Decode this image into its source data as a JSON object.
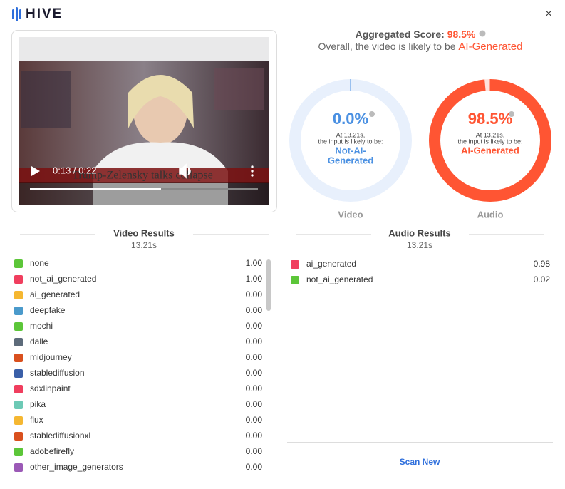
{
  "header": {
    "logo": "HIVE",
    "close": "×"
  },
  "video": {
    "time": "0:13 / 0:22",
    "caption": "Trump-Zelensky talks collapse"
  },
  "summary": {
    "label": "Aggregated Score:",
    "score": "98.5%",
    "sentence": "Overall, the video is likely to be",
    "verdict": "AI-Generated"
  },
  "gauges": [
    {
      "name": "Video",
      "value": 0,
      "label": "0.0%",
      "at": "At 13.21s,",
      "likely": "the input is likely to be:",
      "verdict_lines": [
        "Not-AI-",
        "Generated"
      ],
      "color": "#4a90e2",
      "track": "#e8f0fc"
    },
    {
      "name": "Audio",
      "value": 98.5,
      "label": "98.5%",
      "at": "At 13.21s,",
      "likely": "the input is likely to be:",
      "verdict_lines": [
        "AI-Generated"
      ],
      "color": "#ff5533",
      "track": "#ffe3dc"
    }
  ],
  "video_results": {
    "title": "Video Results",
    "time": "13.21s",
    "rows": [
      {
        "name": "none",
        "score": "1.00",
        "color": "#5cc639"
      },
      {
        "name": "not_ai_generated",
        "score": "1.00",
        "color": "#f03e5e"
      },
      {
        "name": "ai_generated",
        "score": "0.00",
        "color": "#f5b731"
      },
      {
        "name": "deepfake",
        "score": "0.00",
        "color": "#4a9acb"
      },
      {
        "name": "mochi",
        "score": "0.00",
        "color": "#5cc639"
      },
      {
        "name": "dalle",
        "score": "0.00",
        "color": "#5d6b7a"
      },
      {
        "name": "midjourney",
        "score": "0.00",
        "color": "#d9501e"
      },
      {
        "name": "stablediffusion",
        "score": "0.00",
        "color": "#3a5fa8"
      },
      {
        "name": "sdxlinpaint",
        "score": "0.00",
        "color": "#f03e5e"
      },
      {
        "name": "pika",
        "score": "0.00",
        "color": "#6cc9b5"
      },
      {
        "name": "flux",
        "score": "0.00",
        "color": "#f5b731"
      },
      {
        "name": "stablediffusionxl",
        "score": "0.00",
        "color": "#d9501e"
      },
      {
        "name": "adobefirefly",
        "score": "0.00",
        "color": "#5cc639"
      },
      {
        "name": "other_image_generators",
        "score": "0.00",
        "color": "#9b59b6"
      }
    ]
  },
  "audio_results": {
    "title": "Audio Results",
    "time": "13.21s",
    "rows": [
      {
        "name": "ai_generated",
        "score": "0.98",
        "color": "#f03e5e"
      },
      {
        "name": "not_ai_generated",
        "score": "0.02",
        "color": "#5cc639"
      }
    ]
  },
  "actions": {
    "scan_new": "Scan New"
  }
}
